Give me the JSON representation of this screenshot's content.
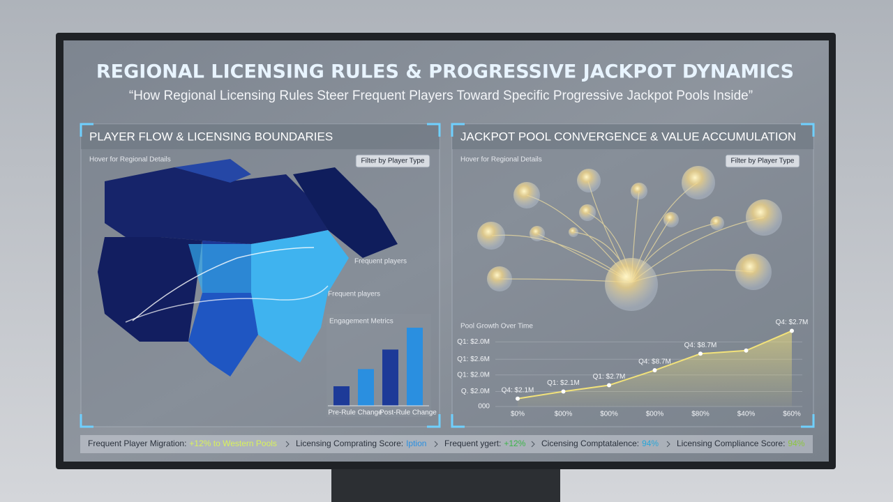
{
  "header": {
    "title": "REGIONAL LICENSING RULES & PROGRESSIVE JACKPOT DYNAMICS",
    "subtitle": "“How Regional Licensing Rules Steer Frequent Players Toward Specific Progressive Jackpot Pools Inside”"
  },
  "left_panel": {
    "title": "PLAYER FLOW & LICENSING BOUNDARIES",
    "hint": "Hover for Regional Details",
    "filter": "Filter by Player Type",
    "map_labels": [
      "Frequent players",
      "Frequent players"
    ],
    "engagement_chart": {
      "type": "bar",
      "title": "Engagement Metrics",
      "categories": [
        "Pre-Rule Change",
        "Post-Rule Change"
      ],
      "series": [
        {
          "color": "#1d3a98",
          "values": [
            25,
            72
          ]
        },
        {
          "color": "#2a8fe0",
          "values": [
            47,
            100
          ]
        }
      ],
      "ylim": [
        0,
        100
      ]
    }
  },
  "right_panel": {
    "title": "JACKPOT POOL CONVERGENCE & VALUE ACCUMULATION",
    "hint": "Hover for Regional Details",
    "filter": "Filter by Player Type",
    "pool_chart": {
      "type": "line",
      "title": "Pool Growth Over Time",
      "categories": [
        "$0%",
        "$00%",
        "$00%",
        "$00%",
        "$80%",
        "$40%",
        "$60%"
      ],
      "values": [
        10,
        19,
        27,
        46,
        67,
        71,
        96
      ],
      "annotations": [
        "Q4: $2.1M",
        "Q1: $2.1M",
        "Q1: $2.7M",
        "Q4: $8.7M",
        "Q4: $8.7M",
        null,
        "Q4: $2.7M"
      ],
      "color": "#f2e27a",
      "ylim": [
        0,
        100
      ],
      "yticks": [
        {
          "value": 0,
          "label": "000"
        },
        {
          "value": 19,
          "label": "Q. $2.0M"
        },
        {
          "value": 40,
          "label": "Q1: $2.0M"
        },
        {
          "value": 60,
          "label": "Q1: $2.6M"
        },
        {
          "value": 82,
          "label": "Q1: $2.0M"
        }
      ]
    }
  },
  "ticker": [
    {
      "label": "Frequent Player Migration:",
      "value": "+12% to Western Pools",
      "color": "#d9f25a"
    },
    {
      "label": "Licensing Comprating Score:",
      "value": "Iption",
      "color": "#2a8fe0"
    },
    {
      "label": "Frequent ygert:",
      "value": "+12%",
      "color": "#3cb54a"
    },
    {
      "label": "Cicensing Comptatalence:",
      "value": "94%",
      "color": "#2aa6d8"
    },
    {
      "label": "Licensing Compliance Score:",
      "value": "94%",
      "color": "#8dc63f"
    }
  ]
}
